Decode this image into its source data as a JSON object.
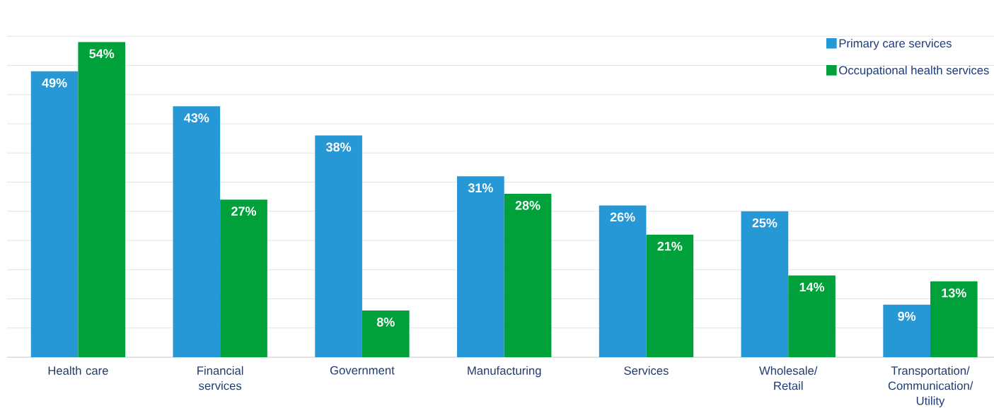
{
  "chart_data": {
    "type": "bar",
    "categories": [
      "Health care",
      "Financial services",
      "Government",
      "Manufacturing",
      "Services",
      "Wholesale/ Retail",
      "Transportation/ Communication/ Utility"
    ],
    "series": [
      {
        "name": "Primary care services",
        "color": "#2698d6",
        "values": [
          49,
          43,
          38,
          31,
          26,
          25,
          9
        ],
        "value_labels": [
          "49%",
          "43%",
          "38%",
          "31%",
          "26%",
          "25%",
          "9%"
        ]
      },
      {
        "name": "Occupational health services",
        "color": "#00a03a",
        "values": [
          54,
          27,
          8,
          28,
          21,
          14,
          13
        ],
        "value_labels": [
          "54%",
          "27%",
          "8%",
          "28%",
          "21%",
          "14%",
          "13%"
        ]
      }
    ],
    "grid": "y",
    "legend": "top right",
    "tick_labels": "x"
  }
}
